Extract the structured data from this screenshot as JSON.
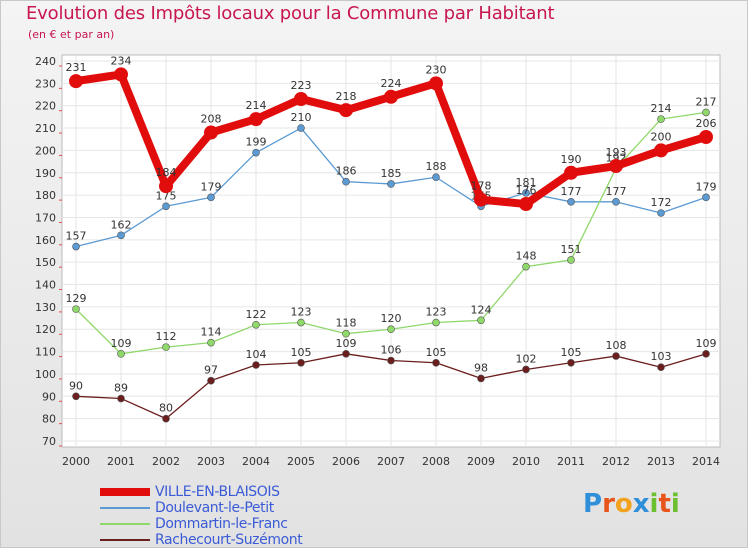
{
  "title": "Evolution des Impôts locaux pour la Commune par Habitant",
  "subtitle": "(en € et par an)",
  "logo": {
    "text": "Proxiti",
    "letters": [
      "P",
      "r",
      "o",
      "x",
      "i",
      "t",
      "i"
    ],
    "colors": [
      "#2f8fd8",
      "#e8541a",
      "#f2a21e",
      "#2f8fd8",
      "#6cbf2f",
      "#e8541a",
      "#6cbf2f"
    ]
  },
  "chart_data": {
    "type": "line",
    "title": "Evolution des Impôts locaux pour la Commune par Habitant",
    "ylabel": "(en € et par an)",
    "xlabel": "",
    "ylim": [
      70,
      240
    ],
    "yticks": [
      70,
      80,
      90,
      100,
      110,
      120,
      130,
      140,
      150,
      160,
      170,
      180,
      190,
      200,
      210,
      220,
      230,
      240
    ],
    "categories": [
      "2000",
      "2001",
      "2002",
      "2003",
      "2004",
      "2005",
      "2006",
      "2007",
      "2008",
      "2009",
      "2010",
      "2011",
      "2012",
      "2013",
      "2014"
    ],
    "grid": true,
    "legend_position": "bottom-left",
    "series": [
      {
        "name": "VILLE-EN-BLAISOIS",
        "color": "#e10d0d",
        "labelColor": "#333333",
        "main": true,
        "values": [
          231,
          234,
          184,
          208,
          214,
          223,
          218,
          224,
          230,
          178,
          176,
          190,
          193,
          200,
          206
        ]
      },
      {
        "name": "Doulevant-le-Petit",
        "color": "#5b9ad3",
        "labelColor": "#333333",
        "main": false,
        "values": [
          157,
          162,
          175,
          179,
          199,
          210,
          186,
          185,
          188,
          175,
          181,
          177,
          177,
          172,
          179
        ]
      },
      {
        "name": "Dommartin-le-Franc",
        "color": "#8fd86a",
        "labelColor": "#333333",
        "main": false,
        "values": [
          129,
          109,
          112,
          114,
          122,
          123,
          118,
          120,
          123,
          124,
          148,
          151,
          192,
          214,
          217
        ]
      },
      {
        "name": "Rachecourt-Suzémont",
        "color": "#6b1e1e",
        "labelColor": "#333333",
        "main": false,
        "values": [
          90,
          89,
          80,
          97,
          104,
          105,
          109,
          106,
          105,
          98,
          102,
          105,
          108,
          103,
          109
        ]
      }
    ]
  }
}
